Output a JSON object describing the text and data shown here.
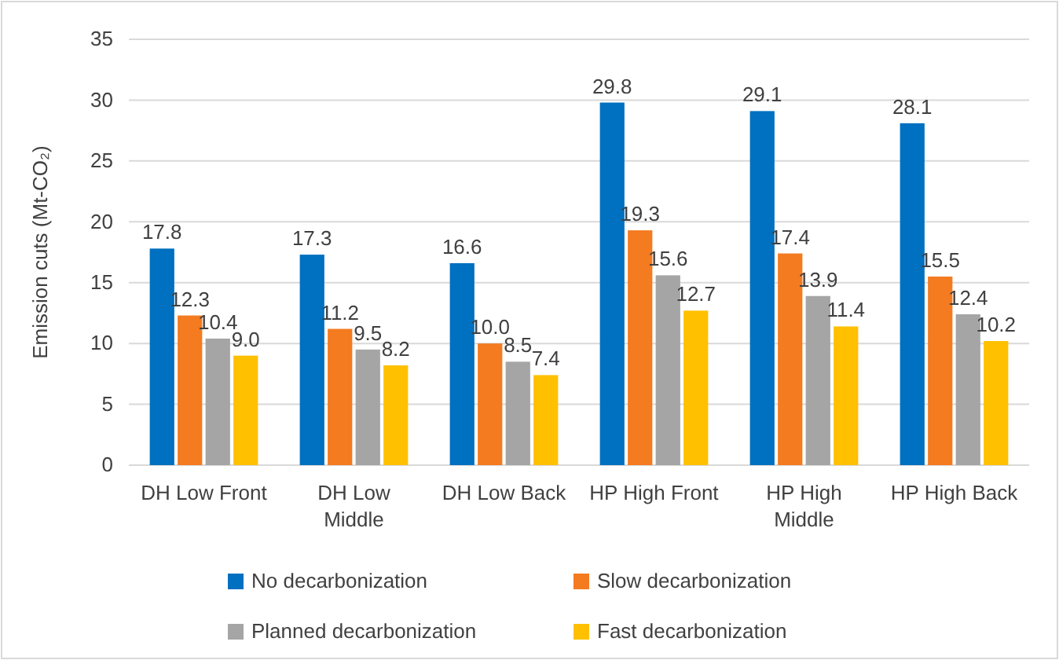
{
  "chart_data": {
    "type": "bar",
    "ylabel": "Emission cuts (Mt-CO₂)",
    "categories": [
      "DH Low Front",
      "DH Low Middle",
      "DH Low Back",
      "HP High Front",
      "HP High Middle",
      "HP High Back"
    ],
    "series": [
      {
        "name": "No decarbonization",
        "color": "#0070c0",
        "values": [
          17.8,
          17.3,
          16.6,
          29.8,
          29.1,
          28.1
        ],
        "value_labels": [
          "17.8",
          "17.3",
          "16.6",
          "29.8",
          "29.1",
          "28.1"
        ]
      },
      {
        "name": "Slow decarbonization",
        "color": "#f47b20",
        "values": [
          12.3,
          11.2,
          10.0,
          19.3,
          17.4,
          15.5
        ],
        "value_labels": [
          "12.3",
          "11.2",
          "10.0",
          "19.3",
          "17.4",
          "15.5"
        ]
      },
      {
        "name": "Planned decarbonization",
        "color": "#a5a5a5",
        "values": [
          10.4,
          9.5,
          8.5,
          15.6,
          13.9,
          12.4
        ],
        "value_labels": [
          "10.4",
          "9.5",
          "8.5",
          "15.6",
          "13.9",
          "12.4"
        ]
      },
      {
        "name": "Fast decarbonization",
        "color": "#ffc000",
        "values": [
          9.0,
          8.2,
          7.4,
          12.7,
          11.4,
          10.2
        ],
        "value_labels": [
          "9.0",
          "8.2",
          "7.4",
          "12.7",
          "11.4",
          "10.2"
        ]
      }
    ],
    "ylim": [
      0,
      35
    ],
    "yticks": [
      0,
      5,
      10,
      15,
      20,
      25,
      30,
      35
    ],
    "grid": "y",
    "legend": "bottom"
  }
}
